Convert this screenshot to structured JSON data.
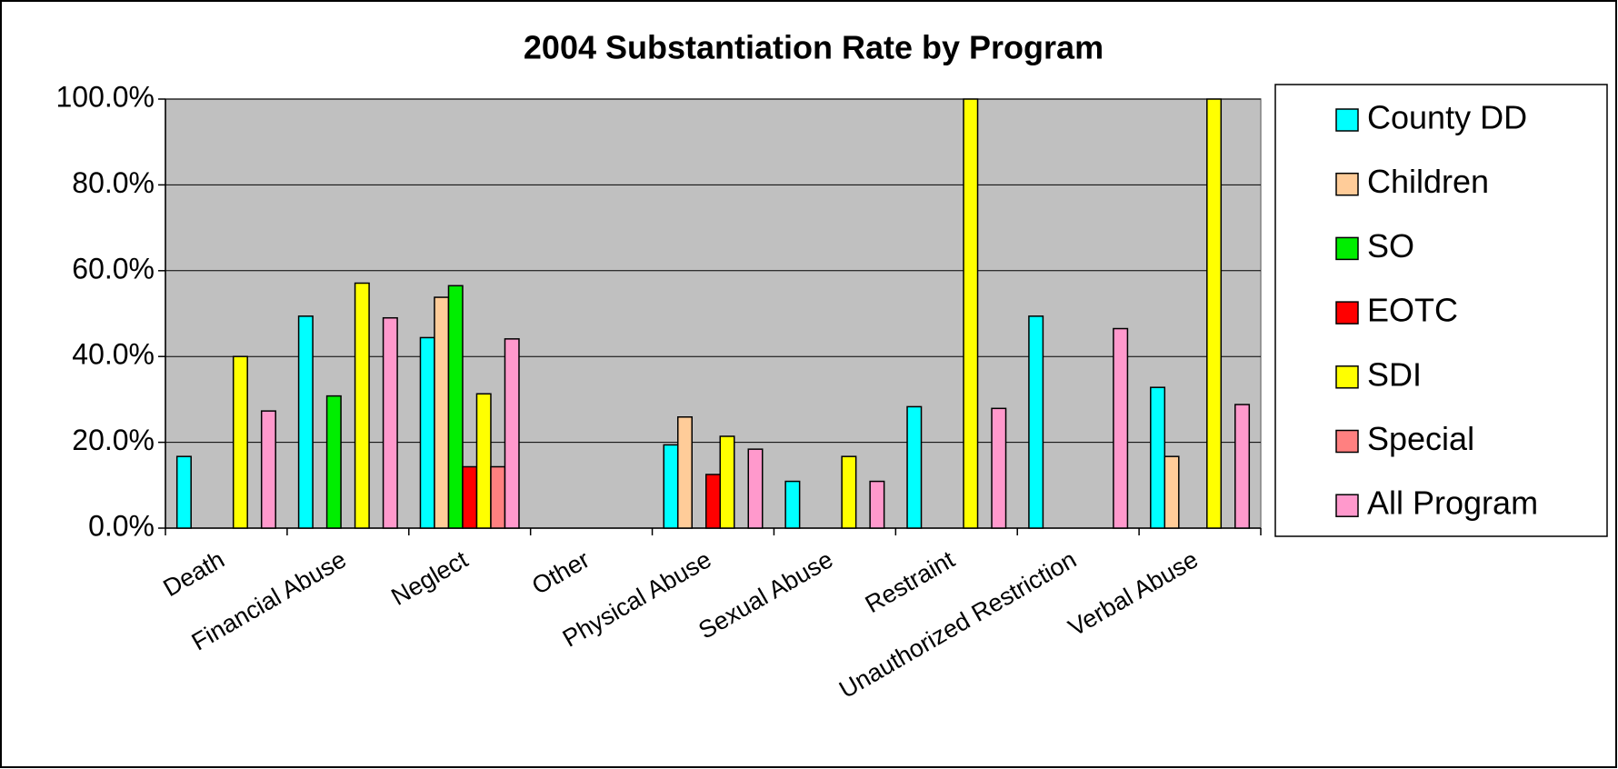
{
  "chart_data": {
    "type": "bar",
    "title": "2004 Substantiation Rate by Program",
    "categories": [
      "Death",
      "Financial Abuse",
      "Neglect",
      "Other",
      "Physical Abuse",
      "Sexual Abuse",
      "Restraint",
      "Unauthorized Restriction",
      "Verbal Abuse"
    ],
    "series": [
      {
        "name": "County DD",
        "color": "#00ffff",
        "values": [
          16.7,
          49.4,
          44.4,
          null,
          19.4,
          10.9,
          28.3,
          49.4,
          32.8
        ]
      },
      {
        "name": "Children",
        "color": "#ffcc99",
        "values": [
          null,
          null,
          53.8,
          null,
          25.9,
          null,
          null,
          null,
          16.7
        ]
      },
      {
        "name": "SO",
        "color": "#00ee00",
        "values": [
          null,
          30.8,
          56.5,
          null,
          null,
          null,
          null,
          null,
          null
        ]
      },
      {
        "name": "EOTC",
        "color": "#ff0000",
        "values": [
          null,
          null,
          14.3,
          null,
          12.5,
          null,
          null,
          null,
          null
        ]
      },
      {
        "name": "SDI",
        "color": "#ffff00",
        "values": [
          40.0,
          57.1,
          31.3,
          null,
          21.4,
          16.7,
          100.0,
          null,
          100.0
        ]
      },
      {
        "name": "Special",
        "color": "#ff8080",
        "values": [
          null,
          null,
          14.3,
          null,
          null,
          null,
          null,
          null,
          null
        ]
      },
      {
        "name": "All Program",
        "color": "#ff99cc",
        "values": [
          27.3,
          49.0,
          44.1,
          null,
          18.4,
          10.9,
          27.9,
          46.5,
          28.8
        ]
      }
    ],
    "ylim": [
      0,
      100
    ],
    "yticks": [
      {
        "value": 0,
        "label": "0.0%"
      },
      {
        "value": 20,
        "label": "20.0%"
      },
      {
        "value": 40,
        "label": "40.0%"
      },
      {
        "value": 60,
        "label": "60.0%"
      },
      {
        "value": 80,
        "label": "80.0%"
      },
      {
        "value": 100,
        "label": "100.0%"
      }
    ],
    "grid": true,
    "legend": "right"
  }
}
